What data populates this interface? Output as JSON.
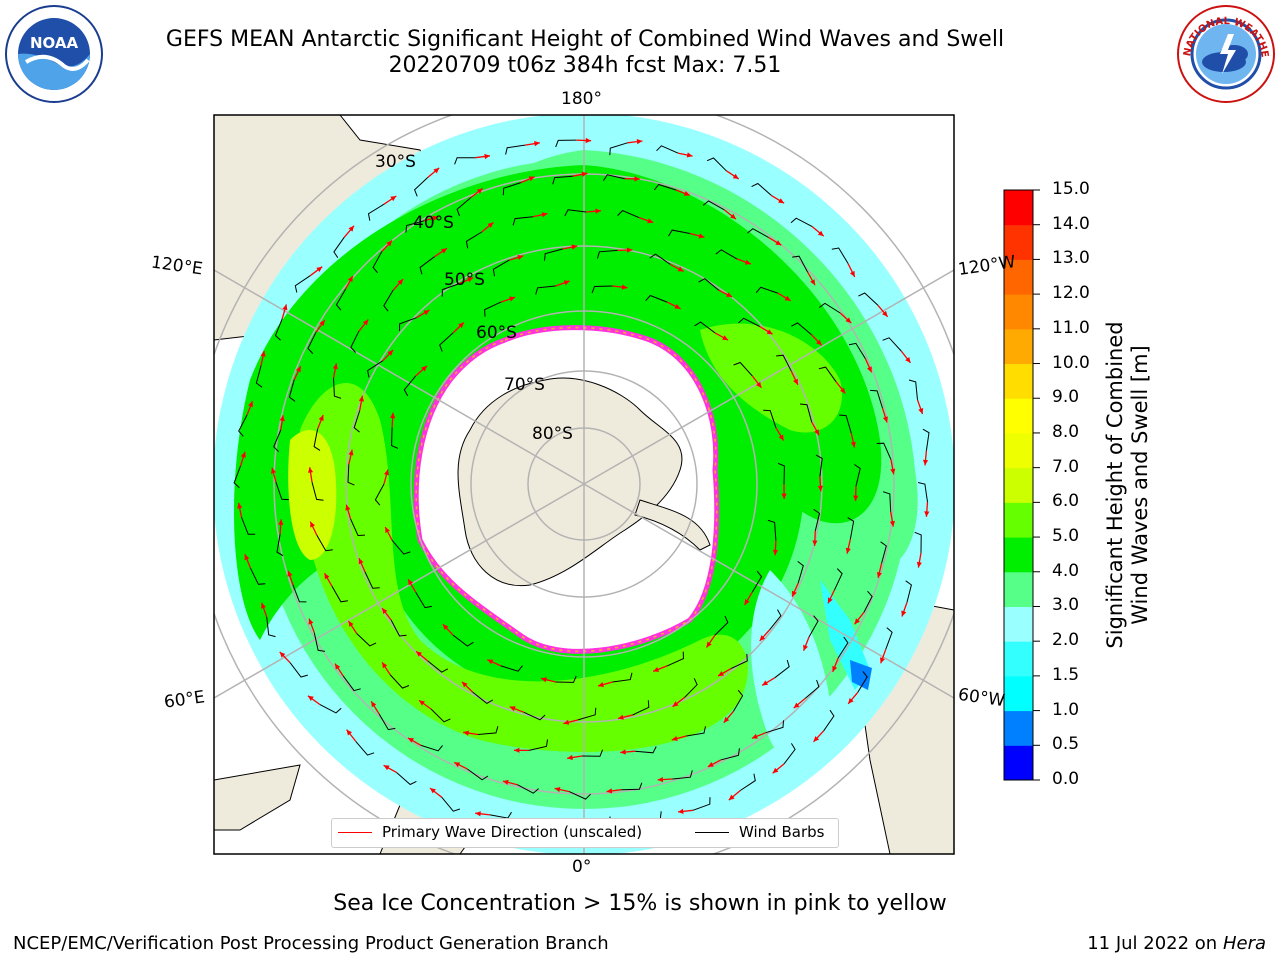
{
  "title": {
    "line1": "GEFS MEAN Antarctic Significant Height of Combined Wind Waves and Swell",
    "line2": "20220709 t06z 384h fcst   Max: 7.51"
  },
  "logos": {
    "left": {
      "name": "noaa-logo",
      "text": "NOAA",
      "ring_text": "NATIONAL OCEANIC AND ATMOSPHERIC ADMINISTRATION · U.S. DEPARTMENT OF COMMERCE"
    },
    "right": {
      "name": "nws-logo",
      "ring_text": "NATIONAL WEATHER SERVICE"
    }
  },
  "map": {
    "projection": "south-polar-stereographic",
    "longitude_labels": {
      "top": "180°",
      "bottom": "0°",
      "upper_left": "120°E",
      "lower_left": "60°E",
      "upper_right": "120°W",
      "lower_right": "60°W"
    },
    "latitude_labels": [
      "30°S",
      "40°S",
      "50°S",
      "60°S",
      "70°S",
      "80°S"
    ],
    "max_value_m": 7.51,
    "colors": {
      "land": "#efebdc",
      "ice": "#ffffff",
      "ice_edge": "#ff33dd",
      "ice_edge_inner": "#ffaa33",
      "coast": "#000000",
      "grid": "#b3b3b3",
      "wave_arrow": "#ff0000",
      "wind_barb": "#000000"
    }
  },
  "legend": {
    "wave_direction": "Primary Wave Direction (unscaled)",
    "wind_barbs": "Wind Barbs"
  },
  "colorbar": {
    "title_line1": "Significant Height of Combined",
    "title_line2": "Wind Waves and Swell [m]",
    "ticks": [
      "0.0",
      "0.5",
      "1.0",
      "1.5",
      "2.0",
      "3.0",
      "4.0",
      "5.0",
      "6.0",
      "7.0",
      "8.0",
      "9.0",
      "10.0",
      "11.0",
      "12.0",
      "13.0",
      "14.0",
      "15.0"
    ],
    "colors": [
      "#0000ff",
      "#0080ff",
      "#00ffff",
      "#33ffff",
      "#99ffff",
      "#55ff88",
      "#00ee00",
      "#66ff00",
      "#ccff00",
      "#eeff00",
      "#ffff00",
      "#ffdd00",
      "#ffaa00",
      "#ff8800",
      "#ff6600",
      "#ff3300",
      "#ff0000"
    ]
  },
  "note": "Sea Ice Concentration > 15% is shown in pink to yellow",
  "footer": {
    "left": "NCEP/EMC/Verification Post Processing Product Generation Branch",
    "right_date": "11 Jul 2022 on ",
    "right_host": "Hera"
  }
}
